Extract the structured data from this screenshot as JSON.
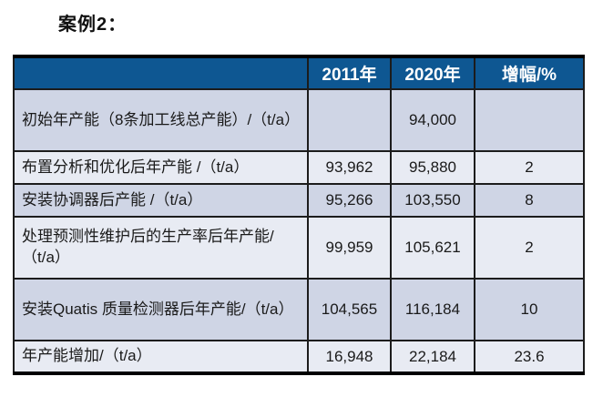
{
  "page": {
    "title": "案例2："
  },
  "table": {
    "columns": {
      "label": "",
      "y2011": "2011年",
      "y2020": "2020年",
      "growth": "增幅/%"
    },
    "rows": [
      {
        "label": "初始年产能（8条加工线总产能）/（t/a）",
        "y2011": "",
        "y2020": "94,000",
        "growth": ""
      },
      {
        "label": "布置分析和优化后年产能 /（t/a）",
        "y2011": "93,962",
        "y2020": "95,880",
        "growth": "2"
      },
      {
        "label": "安装协调器后产能 /（t/a）",
        "y2011": "95,266",
        "y2020": "103,550",
        "growth": "8"
      },
      {
        "label": "处理预测性维护后的生产率后年产能/（t/a）",
        "y2011": "99,959",
        "y2020": "105,621",
        "growth": "2"
      },
      {
        "label": "安装Quatis 质量检测器后年产能/（t/a）",
        "y2011": "104,565",
        "y2020": "116,184",
        "growth": "10"
      },
      {
        "label": "年产能增加/（t/a）",
        "y2011": "16,948",
        "y2020": "22,184",
        "growth": "23.6"
      }
    ],
    "colors": {
      "header_bg": "#0e5792",
      "header_text": "#ffffff",
      "row_odd_bg": "#cfd5e5",
      "row_even_bg": "#e8ebf3",
      "border": "#1c1c1c",
      "body_text": "#1a1a1a"
    }
  }
}
